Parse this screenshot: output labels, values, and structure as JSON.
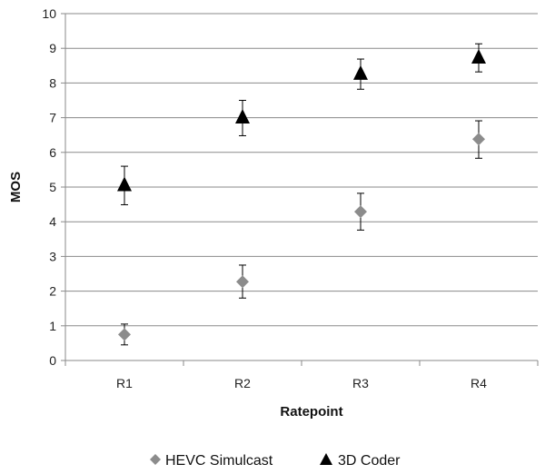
{
  "chart_data": {
    "type": "scatter",
    "xlabel": "Ratepoint",
    "ylabel": "MOS",
    "categories": [
      "R1",
      "R2",
      "R3",
      "R4"
    ],
    "ylim": [
      0,
      10
    ],
    "yticks": [
      0,
      1,
      2,
      3,
      4,
      5,
      6,
      7,
      8,
      9,
      10
    ],
    "grid": "horizontal",
    "legend_position": "bottom",
    "series": [
      {
        "name": "HEVC Simulcast",
        "marker": "diamond",
        "color": "#8c8c8c",
        "values": [
          0.75,
          2.27,
          4.29,
          6.38
        ],
        "error_low": [
          0.45,
          1.8,
          3.76,
          5.83
        ],
        "error_high": [
          1.05,
          2.75,
          4.82,
          6.91
        ]
      },
      {
        "name": "3D Coder",
        "marker": "triangle",
        "color": "#000000",
        "values": [
          5.04,
          6.99,
          8.25,
          8.72
        ],
        "error_low": [
          4.49,
          6.48,
          7.82,
          8.32
        ],
        "error_high": [
          5.6,
          7.5,
          8.69,
          9.13
        ]
      }
    ]
  }
}
